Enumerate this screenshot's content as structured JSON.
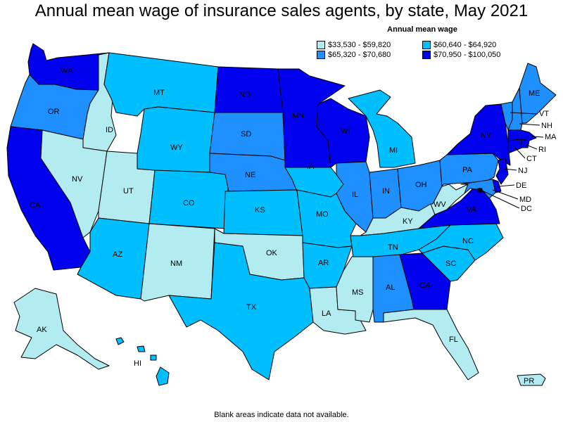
{
  "title": "Annual mean wage of insurance sales agents, by state, May 2021",
  "legend": {
    "title": "Annual mean wage",
    "items": [
      {
        "label": "$33,530 - $59,820",
        "color": "#b2ebf0"
      },
      {
        "label": "$60,640 - $64,920",
        "color": "#00bfff"
      },
      {
        "label": "$65,320 - $70,680",
        "color": "#1e90ff"
      },
      {
        "label": "$70,950 - $100,050",
        "color": "#0000ee"
      }
    ]
  },
  "footer": "Blank areas indicate data not available.",
  "states": [
    {
      "abbr": "WA",
      "bin": 3
    },
    {
      "abbr": "OR",
      "bin": 2
    },
    {
      "abbr": "CA",
      "bin": 3
    },
    {
      "abbr": "ID",
      "bin": 0
    },
    {
      "abbr": "NV",
      "bin": 0
    },
    {
      "abbr": "UT",
      "bin": 0
    },
    {
      "abbr": "AZ",
      "bin": 1
    },
    {
      "abbr": "MT",
      "bin": 1
    },
    {
      "abbr": "WY",
      "bin": 1
    },
    {
      "abbr": "CO",
      "bin": 1
    },
    {
      "abbr": "NM",
      "bin": 0
    },
    {
      "abbr": "ND",
      "bin": 3
    },
    {
      "abbr": "SD",
      "bin": 2
    },
    {
      "abbr": "NE",
      "bin": 2
    },
    {
      "abbr": "KS",
      "bin": 1
    },
    {
      "abbr": "OK",
      "bin": 0
    },
    {
      "abbr": "TX",
      "bin": 1
    },
    {
      "abbr": "MN",
      "bin": 3
    },
    {
      "abbr": "IA",
      "bin": 1
    },
    {
      "abbr": "MO",
      "bin": 1
    },
    {
      "abbr": "AR",
      "bin": 1
    },
    {
      "abbr": "LA",
      "bin": 0
    },
    {
      "abbr": "WI",
      "bin": 3
    },
    {
      "abbr": "IL",
      "bin": 2
    },
    {
      "abbr": "MI",
      "bin": 1
    },
    {
      "abbr": "IN",
      "bin": 2
    },
    {
      "abbr": "OH",
      "bin": 2
    },
    {
      "abbr": "KY",
      "bin": 0
    },
    {
      "abbr": "TN",
      "bin": 1
    },
    {
      "abbr": "MS",
      "bin": 0
    },
    {
      "abbr": "AL",
      "bin": 2
    },
    {
      "abbr": "GA",
      "bin": 3
    },
    {
      "abbr": "FL",
      "bin": 0
    },
    {
      "abbr": "SC",
      "bin": 1
    },
    {
      "abbr": "NC",
      "bin": 1
    },
    {
      "abbr": "VA",
      "bin": 3
    },
    {
      "abbr": "WV",
      "bin": 0
    },
    {
      "abbr": "PA",
      "bin": 2
    },
    {
      "abbr": "NY",
      "bin": 3
    },
    {
      "abbr": "VT",
      "bin": 2
    },
    {
      "abbr": "NH",
      "bin": 2
    },
    {
      "abbr": "ME",
      "bin": 2
    },
    {
      "abbr": "MA",
      "bin": 3
    },
    {
      "abbr": "RI",
      "bin": 3
    },
    {
      "abbr": "CT",
      "bin": 3
    },
    {
      "abbr": "NJ",
      "bin": 3
    },
    {
      "abbr": "DE",
      "bin": 3
    },
    {
      "abbr": "MD",
      "bin": 2
    },
    {
      "abbr": "DC",
      "bin": 3
    },
    {
      "abbr": "AK",
      "bin": 0
    },
    {
      "abbr": "HI",
      "bin": 1
    },
    {
      "abbr": "PR",
      "bin": 0
    }
  ]
}
